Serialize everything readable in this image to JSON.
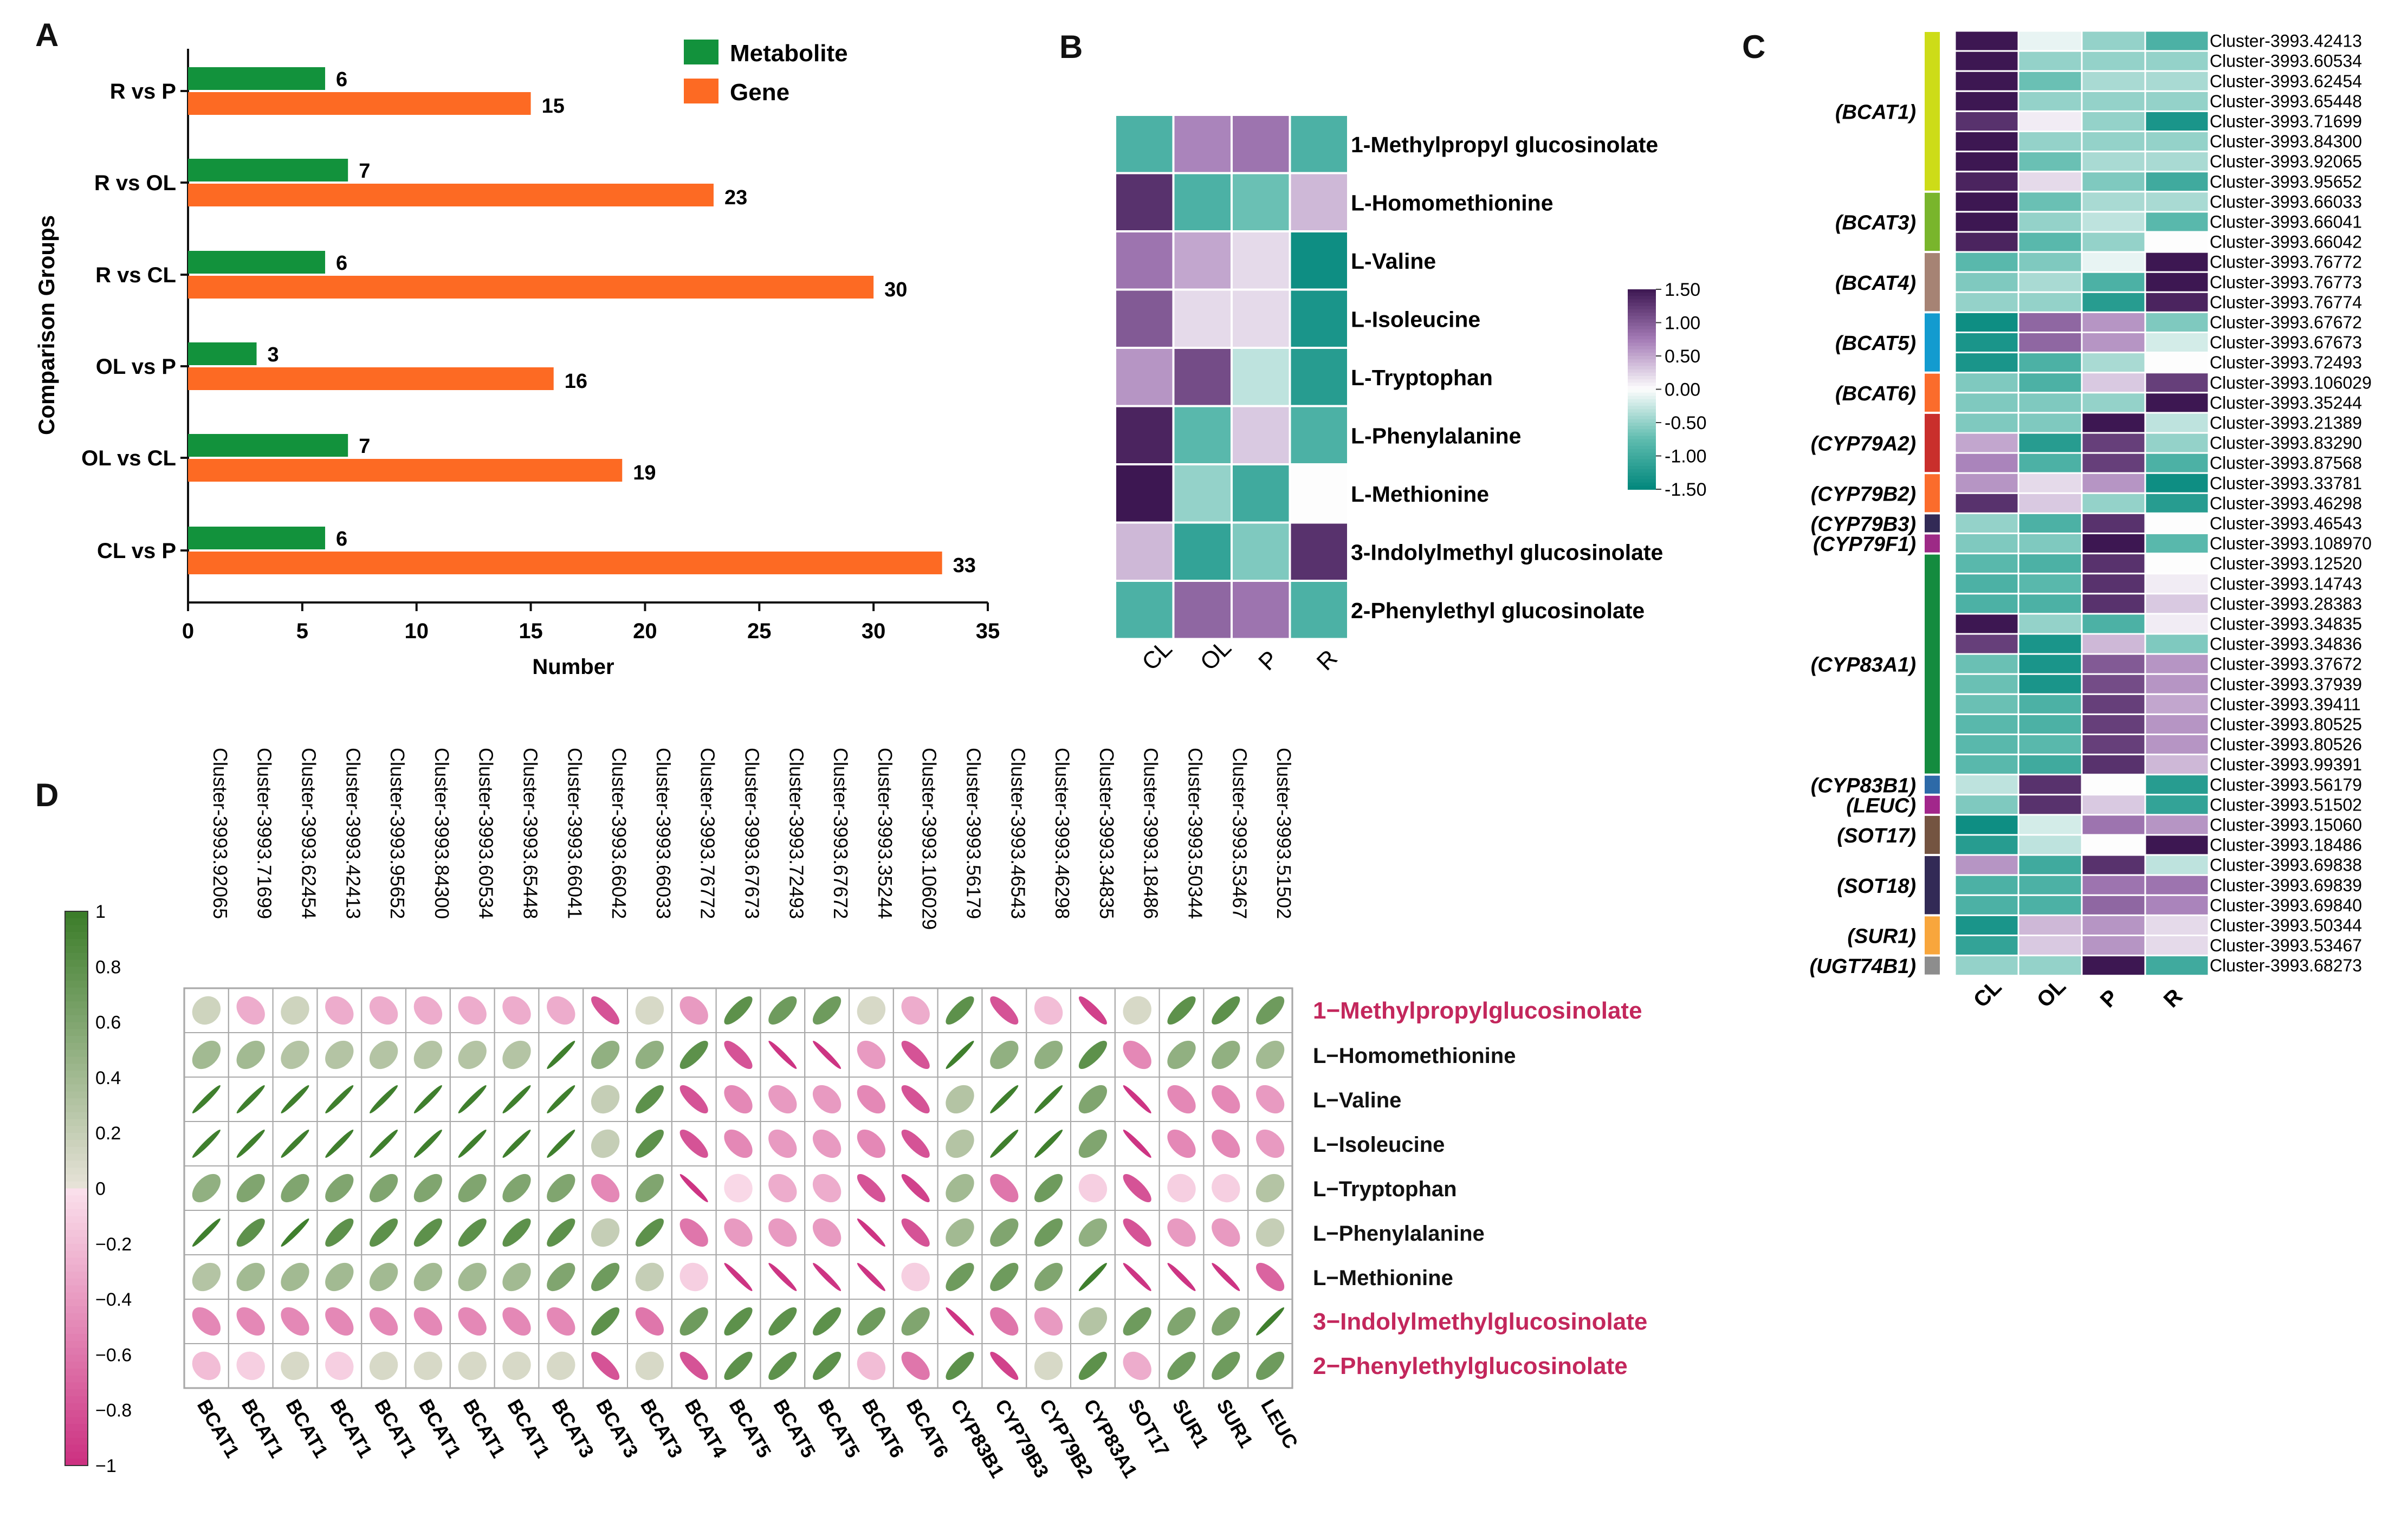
{
  "colors": {
    "metabolite": "#12923c",
    "gene": "#fd6a23",
    "heat_low": "#01877c",
    "heat_mid": "#fdfdfd",
    "heat_high": "#3d1752",
    "corr_pos": "#3a7c28",
    "corr_neg": "#cc2f80",
    "highlight_text": "#c3275c"
  },
  "panels": {
    "a": {
      "letter": "A",
      "legend": [
        "Metabolite",
        "Gene"
      ],
      "chart_data": {
        "type": "bar",
        "orientation": "horizontal",
        "categories": [
          "R vs P",
          "R vs OL",
          "R vs CL",
          "OL vs P",
          "OL vs CL",
          "CL vs P"
        ],
        "series": [
          {
            "name": "Metabolite",
            "values": [
              6,
              7,
              6,
              3,
              7,
              6
            ],
            "labels": [
              "6",
              "7",
              "6",
              "3",
              "7",
              "6"
            ]
          },
          {
            "name": "Gene",
            "values": [
              15,
              23,
              30,
              16,
              19,
              33
            ],
            "labels": [
              "15",
              "23",
              "30",
              "16",
              "19",
              "33"
            ]
          }
        ],
        "xlabel": "Number",
        "ylabel": "Comparison Groups",
        "xlim": [
          0,
          35
        ],
        "xticks": [
          "0",
          "5",
          "10",
          "15",
          "20",
          "25",
          "30",
          "35"
        ],
        "grid": false
      }
    },
    "b": {
      "letter": "B",
      "chart_data": {
        "type": "heatmap",
        "columns": [
          "CL",
          "OL",
          "P",
          "R"
        ],
        "rows": [
          "1-Methylpropyl glucosinolate",
          "L-Homomethionine",
          "L-Valine",
          "L-Isoleucine",
          "L-Tryptophan",
          "L-Phenylalanine",
          "L-Methionine",
          "3-Indolylmethyl glucosinolate",
          "2-Phenylethyl glucosinolate"
        ],
        "values": [
          [
            -0.9,
            0.7,
            0.8,
            -0.9
          ],
          [
            1.3,
            -0.9,
            -0.7,
            0.4
          ],
          [
            0.8,
            0.5,
            0.2,
            -1.4
          ],
          [
            1.0,
            0.2,
            0.2,
            -1.3
          ],
          [
            0.6,
            1.1,
            -0.3,
            -1.2
          ],
          [
            1.4,
            -0.8,
            0.3,
            -0.9
          ],
          [
            1.5,
            -0.5,
            -1.0,
            0.0
          ],
          [
            0.4,
            -1.1,
            -0.6,
            1.3
          ],
          [
            -0.9,
            0.9,
            0.8,
            -0.9
          ]
        ],
        "scale": {
          "min": -1.5,
          "max": 1.5,
          "ticks": [
            "1.50",
            "1.00",
            "0.50",
            "0.00",
            "-0.50",
            "-1.00",
            "-1.50"
          ]
        }
      }
    },
    "c": {
      "letter": "C",
      "chart_data": {
        "type": "heatmap",
        "columns": [
          "CL",
          "OL",
          "P",
          "R"
        ],
        "rows": [
          "Cluster-3993.42413",
          "Cluster-3993.60534",
          "Cluster-3993.62454",
          "Cluster-3993.65448",
          "Cluster-3993.71699",
          "Cluster-3993.84300",
          "Cluster-3993.92065",
          "Cluster-3993.95652",
          "Cluster-3993.66033",
          "Cluster-3993.66041",
          "Cluster-3993.66042",
          "Cluster-3993.76772",
          "Cluster-3993.76773",
          "Cluster-3993.76774",
          "Cluster-3993.67672",
          "Cluster-3993.67673",
          "Cluster-3993.72493",
          "Cluster-3993.106029",
          "Cluster-3993.35244",
          "Cluster-3993.21389",
          "Cluster-3993.83290",
          "Cluster-3993.87568",
          "Cluster-3993.33781",
          "Cluster-3993.46298",
          "Cluster-3993.46543",
          "Cluster-3993.108970",
          "Cluster-3993.12520",
          "Cluster-3993.14743",
          "Cluster-3993.28383",
          "Cluster-3993.34835",
          "Cluster-3993.34836",
          "Cluster-3993.37672",
          "Cluster-3993.37939",
          "Cluster-3993.39411",
          "Cluster-3993.80525",
          "Cluster-3993.80526",
          "Cluster-3993.99391",
          "Cluster-3993.56179",
          "Cluster-3993.51502",
          "Cluster-3993.15060",
          "Cluster-3993.18486",
          "Cluster-3993.69838",
          "Cluster-3993.69839",
          "Cluster-3993.69840",
          "Cluster-3993.50344",
          "Cluster-3993.53467",
          "Cluster-3993.68273"
        ],
        "values": [
          [
            1.5,
            -0.1,
            -0.5,
            -0.9
          ],
          [
            1.5,
            -0.5,
            -0.5,
            -0.5
          ],
          [
            1.5,
            -0.7,
            -0.4,
            -0.4
          ],
          [
            1.5,
            -0.5,
            -0.5,
            -0.5
          ],
          [
            1.3,
            0.1,
            -0.5,
            -1.3
          ],
          [
            1.5,
            -0.5,
            -0.5,
            -0.5
          ],
          [
            1.5,
            -0.7,
            -0.4,
            -0.4
          ],
          [
            1.4,
            0.2,
            -0.6,
            -1.0
          ],
          [
            1.5,
            -0.7,
            -0.4,
            -0.4
          ],
          [
            1.5,
            -0.5,
            -0.3,
            -0.8
          ],
          [
            1.4,
            -0.8,
            -0.5,
            0.0
          ],
          [
            -0.8,
            -0.6,
            -0.1,
            1.5
          ],
          [
            -0.6,
            -0.4,
            -0.9,
            1.5
          ],
          [
            -0.5,
            -0.5,
            -1.2,
            1.4
          ],
          [
            -1.4,
            0.9,
            0.6,
            -0.6
          ],
          [
            -1.3,
            0.9,
            0.6,
            -0.2
          ],
          [
            -1.3,
            -0.9,
            -0.4,
            0.0
          ],
          [
            -0.6,
            -0.9,
            0.3,
            1.2
          ],
          [
            -0.6,
            -0.6,
            -0.5,
            1.5
          ],
          [
            -0.6,
            -0.6,
            1.5,
            -0.3
          ],
          [
            0.5,
            -1.2,
            1.2,
            -0.5
          ],
          [
            0.7,
            -0.9,
            1.2,
            -0.9
          ],
          [
            0.6,
            0.2,
            0.6,
            -1.4
          ],
          [
            1.3,
            0.3,
            -0.5,
            -1.2
          ],
          [
            -0.5,
            -0.9,
            1.3,
            0.0
          ],
          [
            -0.6,
            -0.6,
            1.5,
            -0.8
          ],
          [
            -0.8,
            -0.9,
            1.3,
            0.0
          ],
          [
            -0.9,
            -0.8,
            1.3,
            0.1
          ],
          [
            -0.9,
            -0.9,
            1.3,
            0.3
          ],
          [
            1.5,
            -0.5,
            -0.9,
            0.1
          ],
          [
            1.2,
            -1.3,
            0.4,
            -0.6
          ],
          [
            -0.7,
            -1.3,
            1.0,
            0.6
          ],
          [
            -0.7,
            -1.3,
            1.1,
            0.6
          ],
          [
            -0.7,
            -0.9,
            1.2,
            0.5
          ],
          [
            -0.8,
            -0.9,
            1.2,
            0.6
          ],
          [
            -0.8,
            -0.8,
            1.2,
            0.6
          ],
          [
            -0.8,
            -1.0,
            1.3,
            0.4
          ],
          [
            -0.3,
            1.3,
            0.0,
            -1.2
          ],
          [
            -0.6,
            1.3,
            0.3,
            -1.1
          ],
          [
            -1.4,
            -0.2,
            0.8,
            0.6
          ],
          [
            -1.2,
            -0.3,
            0.0,
            1.5
          ],
          [
            0.6,
            -1.0,
            1.3,
            -0.3
          ],
          [
            -0.9,
            -0.9,
            0.8,
            0.8
          ],
          [
            -0.9,
            -0.9,
            0.9,
            0.7
          ],
          [
            -1.3,
            0.4,
            0.6,
            0.2
          ],
          [
            -1.1,
            0.3,
            0.6,
            0.2
          ],
          [
            -0.5,
            -0.5,
            1.5,
            -1.0
          ]
        ],
        "groups": [
          {
            "label": "(BCAT1)",
            "rows": 8,
            "color": "#cddc18"
          },
          {
            "label": "(BCAT3)",
            "rows": 3,
            "color": "#79b52c"
          },
          {
            "label": "(BCAT4)",
            "rows": 3,
            "color": "#a68374"
          },
          {
            "label": "(BCAT5)",
            "rows": 3,
            "color": "#139bcf"
          },
          {
            "label": "(BCAT6)",
            "rows": 2,
            "color": "#fb6c2c"
          },
          {
            "label": "(CYP79A2)",
            "rows": 3,
            "color": "#c92f2c"
          },
          {
            "label": "(CYP79B2)",
            "rows": 2,
            "color": "#fb6c2c"
          },
          {
            "label": "(CYP79B3)",
            "rows": 1,
            "color": "#322a56"
          },
          {
            "label": "(CYP79F1)",
            "rows": 1,
            "color": "#9d2a86"
          },
          {
            "label": "(CYP83A1)",
            "rows": 11,
            "color": "#148b3f"
          },
          {
            "label": "(CYP83B1)",
            "rows": 1,
            "color": "#2d6aa8"
          },
          {
            "label": "(LEUC)",
            "rows": 1,
            "color": "#a2278b"
          },
          {
            "label": "(SOT17)",
            "rows": 2,
            "color": "#745441"
          },
          {
            "label": "(SOT18)",
            "rows": 3,
            "color": "#322a56"
          },
          {
            "label": "(SUR1)",
            "rows": 2,
            "color": "#f8a63c"
          },
          {
            "label": "(UGT74B1)",
            "rows": 1,
            "color": "#8d8d8d"
          }
        ],
        "scale": {
          "min": -1.5,
          "max": 1.5
        }
      }
    },
    "d": {
      "letter": "D",
      "chart_data": {
        "type": "heatmap",
        "subtype": "correlation-ellipse",
        "columns_top": [
          "Cluster-3993.92065",
          "Cluster-3993.71699",
          "Cluster-3993.62454",
          "Cluster-3993.42413",
          "Cluster-3993.95652",
          "Cluster-3993.84300",
          "Cluster-3993.60534",
          "Cluster-3993.65448",
          "Cluster-3993.66041",
          "Cluster-3993.66042",
          "Cluster-3993.66033",
          "Cluster-3993.76772",
          "Cluster-3993.67673",
          "Cluster-3993.72493",
          "Cluster-3993.67672",
          "Cluster-3993.35244",
          "Cluster-3993.106029",
          "Cluster-3993.56179",
          "Cluster-3993.46543",
          "Cluster-3993.46298",
          "Cluster-3993.34835",
          "Cluster-3993.18486",
          "Cluster-3993.50344",
          "Cluster-3993.53467",
          "Cluster-3993.51502"
        ],
        "columns_bottom": [
          "BCAT1",
          "BCAT1",
          "BCAT1",
          "BCAT1",
          "BCAT1",
          "BCAT1",
          "BCAT1",
          "BCAT1",
          "BCAT3",
          "BCAT3",
          "BCAT3",
          "BCAT4",
          "BCAT5",
          "BCAT5",
          "BCAT5",
          "BCAT6",
          "BCAT6",
          "CYP83B1",
          "CYP79B3",
          "CYP79B2",
          "CYP83A1",
          "SOT17",
          "SUR1",
          "SUR1",
          "LEUC"
        ],
        "rows": [
          "1−Methylpropylglucosinolate",
          "L−Homomethionine",
          "L−Valine",
          "L−Isoleucine",
          "L−Tryptophan",
          "L−Phenylalanine",
          "L−Methionine",
          "3−Indolylmethylglucosinolate",
          "2−Phenylethylglucosinolate"
        ],
        "row_highlight": [
          true,
          false,
          false,
          false,
          false,
          false,
          false,
          true,
          true
        ],
        "values": [
          [
            0.15,
            -0.3,
            0.15,
            -0.3,
            -0.3,
            -0.3,
            -0.3,
            -0.3,
            -0.3,
            -0.8,
            0.1,
            -0.4,
            0.8,
            0.7,
            0.7,
            0.1,
            -0.3,
            0.8,
            -0.8,
            -0.2,
            -0.9,
            0.1,
            0.8,
            0.8,
            0.7
          ],
          [
            0.4,
            0.4,
            0.3,
            0.3,
            0.3,
            0.3,
            0.3,
            0.3,
            0.97,
            0.5,
            0.5,
            0.8,
            -0.8,
            -0.97,
            -0.97,
            -0.4,
            -0.8,
            0.97,
            0.5,
            0.5,
            0.8,
            -0.5,
            0.5,
            0.5,
            0.4
          ],
          [
            0.97,
            0.97,
            0.97,
            0.97,
            0.97,
            0.97,
            0.97,
            0.97,
            0.97,
            0.2,
            0.8,
            -0.8,
            -0.5,
            -0.4,
            -0.4,
            -0.5,
            -0.8,
            0.3,
            0.97,
            0.97,
            0.6,
            -0.97,
            -0.5,
            -0.5,
            -0.4
          ],
          [
            0.97,
            0.97,
            0.97,
            0.97,
            0.97,
            0.97,
            0.97,
            0.97,
            0.97,
            0.2,
            0.8,
            -0.8,
            -0.5,
            -0.4,
            -0.4,
            -0.5,
            -0.8,
            0.3,
            0.97,
            0.97,
            0.6,
            -0.97,
            -0.5,
            -0.5,
            -0.4
          ],
          [
            0.5,
            0.6,
            0.6,
            0.6,
            0.6,
            0.6,
            0.6,
            0.6,
            0.6,
            -0.5,
            0.6,
            -0.97,
            -0.05,
            -0.3,
            -0.3,
            -0.8,
            -0.9,
            0.4,
            -0.6,
            0.7,
            -0.1,
            -0.8,
            -0.1,
            -0.1,
            0.3
          ],
          [
            0.97,
            0.8,
            0.97,
            0.8,
            0.8,
            0.8,
            0.8,
            0.8,
            0.8,
            0.2,
            0.8,
            -0.6,
            -0.4,
            -0.4,
            -0.4,
            -0.97,
            -0.8,
            0.4,
            0.6,
            0.7,
            0.5,
            -0.8,
            -0.4,
            -0.4,
            0.2
          ],
          [
            0.3,
            0.4,
            0.4,
            0.4,
            0.4,
            0.4,
            0.4,
            0.4,
            0.6,
            0.7,
            0.2,
            -0.1,
            -0.97,
            -0.97,
            -0.97,
            -0.97,
            -0.1,
            0.7,
            0.7,
            0.6,
            0.97,
            -0.97,
            -0.97,
            -0.97,
            -0.7
          ],
          [
            -0.5,
            -0.5,
            -0.5,
            -0.5,
            -0.5,
            -0.5,
            -0.5,
            -0.5,
            -0.5,
            0.8,
            -0.6,
            0.7,
            0.8,
            0.8,
            0.8,
            0.7,
            0.6,
            -0.97,
            -0.6,
            -0.4,
            0.3,
            0.7,
            0.6,
            0.6,
            0.97
          ],
          [
            -0.2,
            -0.1,
            0.1,
            -0.1,
            0.1,
            0.1,
            0.1,
            0.1,
            0.1,
            -0.8,
            0.1,
            -0.8,
            0.8,
            0.8,
            0.8,
            -0.2,
            -0.6,
            0.8,
            -0.9,
            0.1,
            0.8,
            -0.3,
            0.7,
            0.7,
            0.7
          ]
        ],
        "scale": {
          "min": -1,
          "max": 1,
          "ticks": [
            "1",
            "0.8",
            "0.6",
            "0.4",
            "0.2",
            "0",
            "−0.2",
            "−0.4",
            "−0.6",
            "−0.8",
            "−1"
          ]
        }
      }
    }
  }
}
